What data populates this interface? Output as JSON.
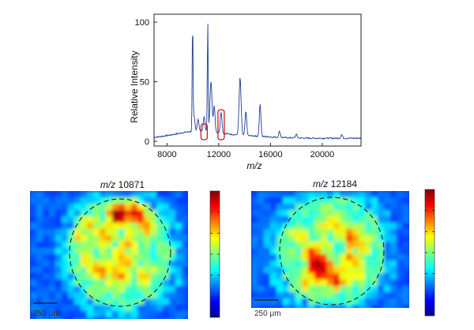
{
  "chart_data": [
    {
      "type": "line",
      "title": "",
      "xlabel": "m/z",
      "ylabel": "Relative Intensity",
      "xlim": [
        7000,
        23000
      ],
      "ylim": [
        0,
        100
      ],
      "x_ticks": [
        "8000",
        "12000",
        "16000",
        "20000"
      ],
      "y_ticks": [
        "0",
        "50",
        "100"
      ],
      "series_color": "#1f3f99",
      "highlight_color": "#d11a1a",
      "peaks": [
        {
          "x": 9980,
          "y": 93
        },
        {
          "x": 10100,
          "y": 12
        },
        {
          "x": 10400,
          "y": 10
        },
        {
          "x": 10871,
          "y": 12
        },
        {
          "x": 11150,
          "y": 95
        },
        {
          "x": 11400,
          "y": 42
        },
        {
          "x": 11650,
          "y": 22
        },
        {
          "x": 12184,
          "y": 18
        },
        {
          "x": 13650,
          "y": 48
        },
        {
          "x": 14100,
          "y": 20
        },
        {
          "x": 15200,
          "y": 27
        },
        {
          "x": 16700,
          "y": 5
        },
        {
          "x": 18000,
          "y": 3
        },
        {
          "x": 21500,
          "y": 3
        }
      ],
      "highlighted_mz": [
        10871,
        12184
      ]
    },
    {
      "type": "heatmap",
      "title_italic": "m/z",
      "title_value": "10871",
      "scale_bar_label": "250 μm",
      "colormap": "jet"
    },
    {
      "type": "heatmap",
      "title_italic": "m/z",
      "title_value": "12184",
      "scale_bar_label": "250 μm",
      "colormap": "jet"
    }
  ]
}
